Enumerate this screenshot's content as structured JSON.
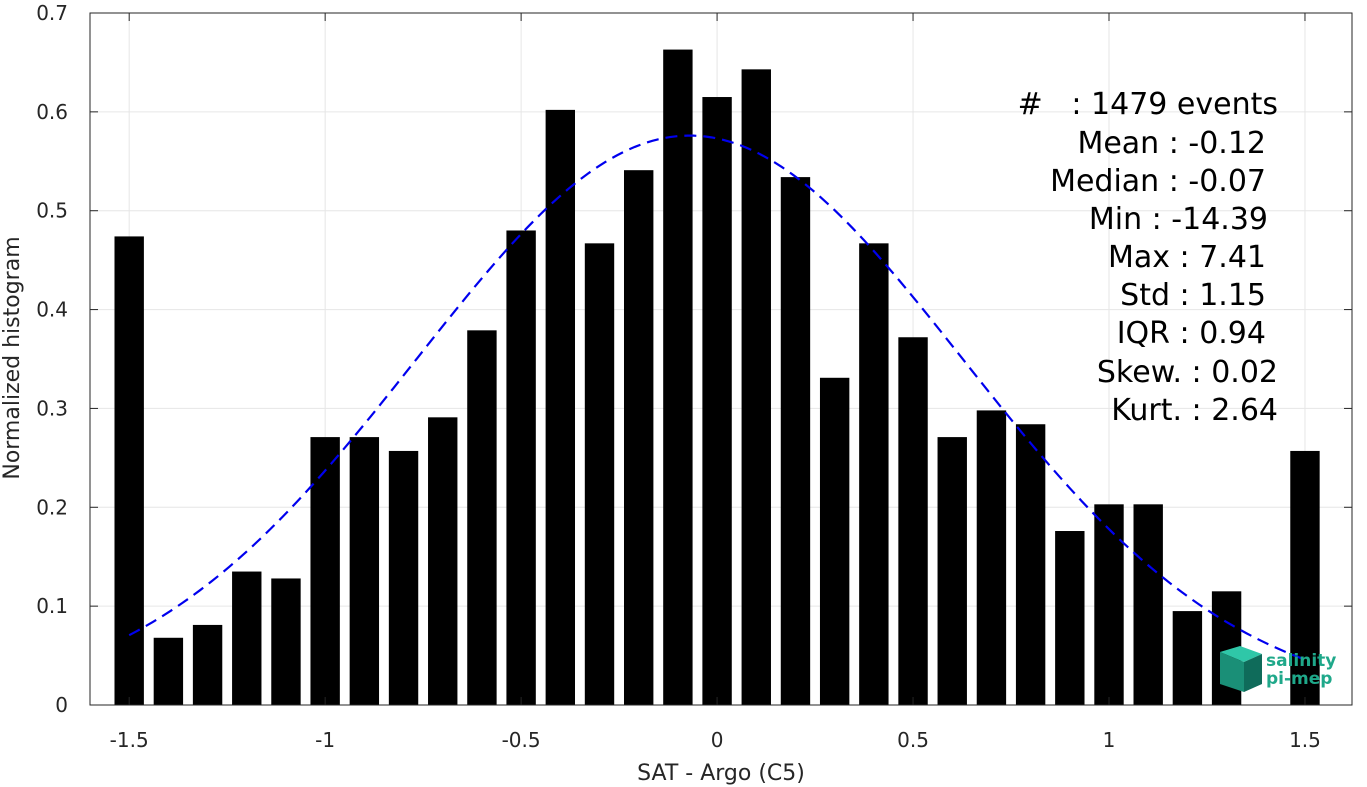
{
  "chart_data": {
    "type": "bar",
    "xlabel": "SAT - Argo (C5)",
    "ylabel": "Normalized histogram",
    "xlim": [
      -1.6,
      1.62
    ],
    "ylim": [
      0,
      0.7
    ],
    "xticks": [
      -1.5,
      -1,
      -0.5,
      0,
      0.5,
      1,
      1.5
    ],
    "xtick_labels": [
      "-1.5",
      "-1",
      "-0.5",
      "0",
      "0.5",
      "1",
      "1.5"
    ],
    "yticks": [
      0,
      0.1,
      0.2,
      0.3,
      0.4,
      0.5,
      0.6,
      0.7
    ],
    "ytick_labels": [
      "0",
      "0.1",
      "0.2",
      "0.3",
      "0.4",
      "0.5",
      "0.6",
      "0.7"
    ],
    "grid": true,
    "bar_color": "#000000",
    "bar_width": 0.075,
    "bins": {
      "x": [
        -1.5,
        -1.4,
        -1.3,
        -1.2,
        -1.1,
        -1.0,
        -0.9,
        -0.8,
        -0.7,
        -0.6,
        -0.5,
        -0.4,
        -0.3,
        -0.2,
        -0.1,
        0.0,
        0.1,
        0.2,
        0.3,
        0.4,
        0.5,
        0.6,
        0.7,
        0.8,
        0.9,
        1.0,
        1.1,
        1.2,
        1.3,
        1.4,
        1.5
      ],
      "values": [
        0.474,
        0.068,
        0.081,
        0.135,
        0.128,
        0.271,
        0.271,
        0.257,
        0.291,
        0.379,
        0.48,
        0.602,
        0.467,
        0.541,
        0.663,
        0.615,
        0.643,
        0.534,
        0.331,
        0.467,
        0.372,
        0.271,
        0.298,
        0.284,
        0.176,
        0.203,
        0.203,
        0.095,
        0.115,
        0.0,
        0.257
      ]
    },
    "series": [
      {
        "type": "line",
        "style": "dashed",
        "color": "#0000ee",
        "fit": "gaussian",
        "x_range": [
          -1.5,
          1.5
        ],
        "peak": 0.576,
        "mean": -0.07,
        "sigma": 0.698
      }
    ],
    "annotation_lines": [
      "#   : 1479 events",
      "Mean : -0.12",
      "Median : -0.07",
      "Min : -14.39",
      "Max : 7.41",
      "Std : 1.15",
      "IQR : 0.94",
      "Skew. : 0.02",
      "Kurt. : 2.64"
    ],
    "logo": {
      "line1": "salinity",
      "line2": "pi-mep",
      "color": "#1fa88a"
    }
  }
}
